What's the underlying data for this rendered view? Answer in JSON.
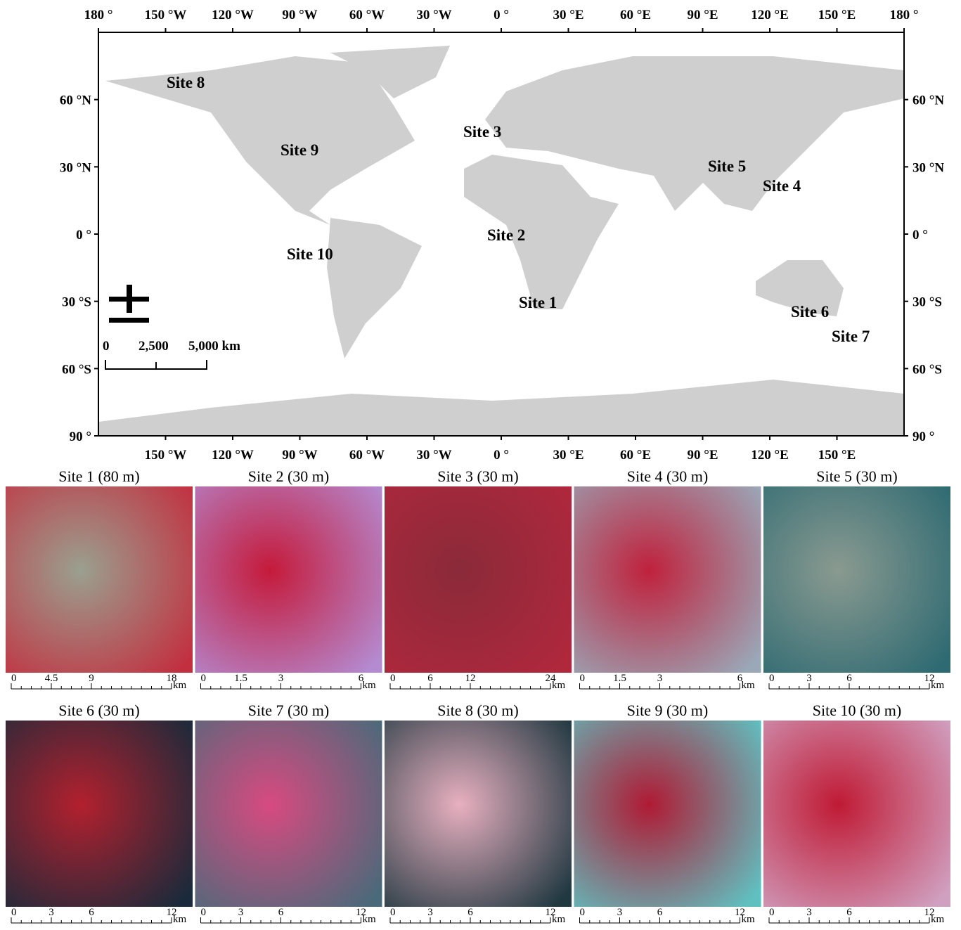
{
  "map": {
    "lon_labels_top": [
      "180 °",
      "150 °W",
      "120 °W",
      "90 °W",
      "60 °W",
      "30 °W",
      "0 °",
      "30 °E",
      "60 °E",
      "90 °E",
      "120 °E",
      "150 °E",
      "180 °"
    ],
    "lon_labels_bottom": [
      "150 °W",
      "120 °W",
      "90 °W",
      "60 °W",
      "30 °W",
      "0 °",
      "30 °E",
      "60 °E",
      "90 °E",
      "120 °E",
      "150 °E"
    ],
    "lat_labels": [
      "60 °N",
      "30 °N",
      "0 °",
      "30 °S",
      "60 °S",
      "90 °"
    ],
    "sites": [
      "Site 8",
      "Site 9",
      "Site 3",
      "Site 5",
      "Site 4",
      "Site 2",
      "Site 10",
      "Site 1",
      "Site 6",
      "Site 7"
    ],
    "scale_bar": [
      "0",
      "2,500",
      "5,000 km"
    ]
  },
  "panels": [
    {
      "title": "Site 1 (80 m)",
      "scale": [
        0,
        4.5,
        9,
        18
      ],
      "unit": "km"
    },
    {
      "title": "Site 2 (30 m)",
      "scale": [
        0,
        1.5,
        3,
        6
      ],
      "unit": "km"
    },
    {
      "title": "Site 3 (30 m)",
      "scale": [
        0,
        6,
        12,
        24
      ],
      "unit": "km"
    },
    {
      "title": "Site 4 (30 m)",
      "scale": [
        0,
        1.5,
        3,
        6
      ],
      "unit": "km"
    },
    {
      "title": "Site 5 (30 m)",
      "scale": [
        0,
        3,
        6,
        12
      ],
      "unit": "km"
    },
    {
      "title": "Site 6 (30 m)",
      "scale": [
        0,
        3,
        6,
        12
      ],
      "unit": "km"
    },
    {
      "title": "Site 7 (30 m)",
      "scale": [
        0,
        3,
        6,
        12
      ],
      "unit": "km"
    },
    {
      "title": "Site 8 (30 m)",
      "scale": [
        0,
        3,
        6,
        12
      ],
      "unit": "km"
    },
    {
      "title": "Site 9 (30 m)",
      "scale": [
        0,
        3,
        6,
        12
      ],
      "unit": "km"
    },
    {
      "title": "Site 10 (30 m)",
      "scale": [
        0,
        3,
        6,
        12
      ],
      "unit": "km"
    }
  ]
}
